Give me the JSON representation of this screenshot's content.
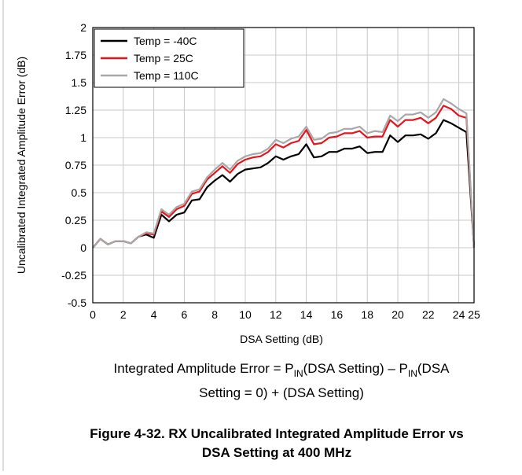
{
  "chart_data": {
    "type": "line",
    "xlabel": "DSA Setting (dB)",
    "ylabel": "Uncalibrated Integrated Amplitude Error (dB)",
    "x": [
      0,
      0.5,
      1,
      1.5,
      2,
      2.5,
      3,
      3.5,
      4,
      4.5,
      5,
      5.5,
      6,
      6.5,
      7,
      7.5,
      8,
      8.5,
      9,
      9.5,
      10,
      10.5,
      11,
      11.5,
      12,
      12.5,
      13,
      13.5,
      14,
      14.5,
      15,
      15.5,
      16,
      16.5,
      17,
      17.5,
      18,
      18.5,
      19,
      19.5,
      20,
      20.5,
      21,
      21.5,
      22,
      22.5,
      23,
      23.5,
      24,
      24.5,
      25
    ],
    "series": [
      {
        "name": "Temp = -40C",
        "color": "#000000",
        "values": [
          0,
          0.08,
          0.03,
          0.06,
          0.06,
          0.04,
          0.1,
          0.12,
          0.09,
          0.3,
          0.24,
          0.3,
          0.32,
          0.43,
          0.44,
          0.55,
          0.61,
          0.66,
          0.6,
          0.67,
          0.71,
          0.72,
          0.73,
          0.77,
          0.83,
          0.8,
          0.83,
          0.85,
          0.94,
          0.82,
          0.83,
          0.87,
          0.87,
          0.9,
          0.9,
          0.92,
          0.86,
          0.87,
          0.87,
          1.02,
          0.96,
          1.02,
          1.02,
          1.03,
          0.99,
          1.04,
          1.16,
          1.13,
          1.09,
          1.05,
          0
        ]
      },
      {
        "name": "Temp = 25C",
        "color": "#e8141c",
        "values": [
          0,
          0.08,
          0.03,
          0.06,
          0.06,
          0.04,
          0.1,
          0.13,
          0.12,
          0.33,
          0.28,
          0.35,
          0.38,
          0.49,
          0.51,
          0.62,
          0.68,
          0.74,
          0.68,
          0.76,
          0.8,
          0.82,
          0.83,
          0.87,
          0.94,
          0.91,
          0.95,
          0.97,
          1.07,
          0.94,
          0.95,
          1.0,
          1.01,
          1.04,
          1.04,
          1.06,
          1.0,
          1.01,
          1.01,
          1.16,
          1.1,
          1.16,
          1.16,
          1.18,
          1.13,
          1.18,
          1.29,
          1.26,
          1.2,
          1.18,
          0
        ]
      },
      {
        "name": "Temp = 110C",
        "color": "#a8a8a8",
        "values": [
          0,
          0.08,
          0.03,
          0.06,
          0.06,
          0.04,
          0.1,
          0.14,
          0.13,
          0.35,
          0.3,
          0.37,
          0.4,
          0.51,
          0.53,
          0.64,
          0.71,
          0.77,
          0.71,
          0.79,
          0.83,
          0.85,
          0.86,
          0.9,
          0.98,
          0.95,
          0.99,
          1.01,
          1.1,
          0.98,
          0.99,
          1.04,
          1.05,
          1.08,
          1.08,
          1.1,
          1.04,
          1.06,
          1.05,
          1.2,
          1.15,
          1.21,
          1.21,
          1.23,
          1.18,
          1.23,
          1.35,
          1.31,
          1.26,
          1.22,
          0
        ]
      }
    ],
    "xlim": [
      0,
      25
    ],
    "xticks": [
      0,
      2,
      4,
      6,
      8,
      10,
      12,
      14,
      16,
      18,
      20,
      22,
      24,
      25
    ],
    "ylim": [
      -0.5,
      2
    ],
    "yticks": [
      -0.5,
      -0.25,
      0,
      0.25,
      0.5,
      0.75,
      1,
      1.25,
      1.5,
      1.75,
      2
    ],
    "grid": true,
    "legend": "upper-left",
    "formula": {
      "line1": [
        "Integrated Amplitude Error = P",
        "IN",
        "(DSA Setting) – P",
        "IN",
        "(DSA"
      ],
      "line2": "Setting = 0) + (DSA Setting)"
    },
    "caption": [
      "Figure 4-32. RX Uncalibrated Integrated Amplitude Error vs",
      "DSA Setting at 400 MHz"
    ]
  }
}
